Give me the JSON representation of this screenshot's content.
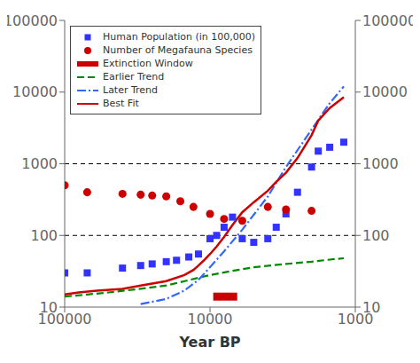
{
  "chart_data": {
    "type": "scatter",
    "xlabel": "Year BP",
    "log": true,
    "grid": false,
    "legend": "upper left",
    "xlim": [
      100000,
      1000
    ],
    "xticks": [
      100000,
      10000,
      1000
    ],
    "ylim": [
      10,
      100000
    ],
    "yticks": [
      10,
      100,
      1000,
      10000,
      100000
    ],
    "y2lim": [
      10,
      100000
    ],
    "y2ticks": [
      10,
      100,
      1000,
      10000,
      100000
    ],
    "hlines": [
      100,
      1000
    ],
    "series": [
      {
        "name": "Human Population (in 100,000)",
        "type": "scatter",
        "color": "#3333FF",
        "marker": "square",
        "x": [
          100000,
          70000,
          40000,
          30000,
          25000,
          20000,
          17000,
          14000,
          12000,
          10000,
          9000,
          8000,
          7000,
          6000,
          5000,
          4000,
          3500,
          3000,
          2500,
          2000,
          1800,
          1500,
          1200
        ],
        "values": [
          30,
          30,
          35,
          38,
          40,
          43,
          45,
          50,
          55,
          90,
          100,
          130,
          180,
          90,
          80,
          90,
          130,
          200,
          400,
          900,
          1500,
          1700,
          2000
        ]
      },
      {
        "name": "Number of Megafauna Species",
        "type": "scatter",
        "color": "#CC0000",
        "marker": "circle",
        "x": [
          100000,
          70000,
          40000,
          30000,
          25000,
          20000,
          16000,
          13000,
          10000,
          8000,
          6000,
          4000,
          3000,
          2000
        ],
        "values": [
          500,
          400,
          380,
          370,
          360,
          350,
          300,
          250,
          200,
          170,
          160,
          250,
          230,
          220
        ]
      },
      {
        "name": "Extinction Window",
        "type": "interval",
        "color": "#CC0000",
        "line_style": "solid",
        "x": [
          9500,
          6500
        ],
        "values": [
          14,
          14
        ]
      },
      {
        "name": "Earlier Trend",
        "type": "line",
        "color": "#008800",
        "line_style": "dashed",
        "x": [
          100000,
          70000,
          50000,
          30000,
          20000,
          10000,
          7000,
          5000,
          3000,
          2000,
          1500,
          1200
        ],
        "values": [
          14,
          15,
          16,
          18,
          20,
          28,
          32,
          36,
          40,
          43,
          46,
          48
        ]
      },
      {
        "name": "Later Trend",
        "type": "line",
        "color": "#3366FF",
        "line_style": "dashdot",
        "x": [
          30000,
          20000,
          15000,
          12000,
          10000,
          8000,
          6000,
          4000,
          3000,
          2000,
          1500,
          1200
        ],
        "values": [
          11,
          13,
          17,
          24,
          36,
          60,
          120,
          350,
          900,
          3000,
          7000,
          12000
        ]
      },
      {
        "name": "Best Fit",
        "type": "line",
        "color": "#CC0000",
        "line_style": "solid",
        "x": [
          100000,
          80000,
          60000,
          40000,
          30000,
          20000,
          15000,
          13000,
          12000,
          11000,
          10000,
          9000,
          8000,
          7000,
          6000,
          5000,
          4000,
          3500,
          3000,
          2500,
          2000,
          1800,
          1500,
          1200
        ],
        "values": [
          15,
          16,
          17,
          18,
          20,
          23,
          28,
          33,
          38,
          45,
          55,
          70,
          95,
          140,
          210,
          290,
          420,
          560,
          750,
          1200,
          2500,
          4000,
          6000,
          8500
        ]
      }
    ]
  }
}
